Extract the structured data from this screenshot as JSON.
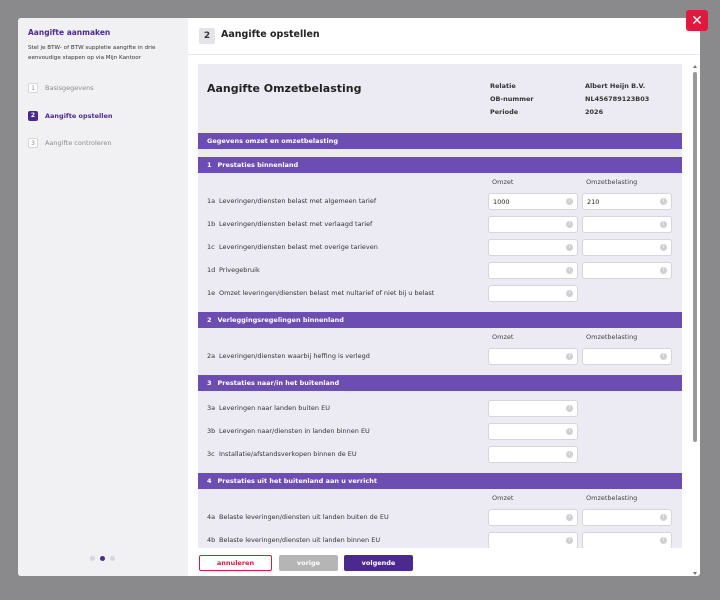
{
  "sidebar": {
    "title": "Aangifte aanmaken",
    "description": "Stel je BTW- of BTW suppletie aangifte in drie eenvoudige stappen op via Mijn Kantoor",
    "steps": [
      {
        "number": "1",
        "label": "Basisgegevens"
      },
      {
        "number": "2",
        "label": "Aangifte opstellen"
      },
      {
        "number": "3",
        "label": "Aangifte controleren"
      }
    ]
  },
  "header": {
    "step_number": "2",
    "title": "Aangifte opstellen"
  },
  "form": {
    "title": "Aangifte Omzetbelasting",
    "meta": [
      {
        "label": "Relatie",
        "value": "Albert Heijn B.V."
      },
      {
        "label": "OB-nummer",
        "value": "NL456789123B03"
      },
      {
        "label": "Periode",
        "value": "2026"
      }
    ],
    "group_title": "Gegevens omzet en omzetbelasting",
    "sections": [
      {
        "number": "1",
        "title": "Prestaties binnenland",
        "columns": [
          "Omzet",
          "Omzetbelasting"
        ],
        "rows": [
          {
            "code": "1a",
            "label": "Leveringen/diensten belast met algemeen tarief",
            "values": [
              1000,
              210
            ]
          },
          {
            "code": "1b",
            "label": "Leveringen/diensten belast met verlaagd tarief",
            "values": [
              null,
              null
            ]
          },
          {
            "code": "1c",
            "label": "Leveringen/diensten belast met overige tarieven",
            "values": [
              null,
              null
            ]
          },
          {
            "code": "1d",
            "label": "Privegebruik",
            "values": [
              null,
              null
            ]
          },
          {
            "code": "1e",
            "label": "Omzet leveringen/diensten belast met nultarief of niet bij u belast",
            "values": [
              null
            ]
          }
        ]
      },
      {
        "number": "2",
        "title": "Verleggingsregelingen binnenland",
        "columns": [
          "Omzet",
          "Omzetbelasting"
        ],
        "rows": [
          {
            "code": "2a",
            "label": "Leveringen/diensten waarbij heffing is verlegd",
            "values": [
              null,
              null
            ]
          }
        ]
      },
      {
        "number": "3",
        "title": "Prestaties naar/in het buitenland",
        "rows": [
          {
            "code": "3a",
            "label": "Leveringen naar landen buiten EU",
            "values": [
              null
            ]
          },
          {
            "code": "3b",
            "label": "Leveringen naar/diensten in landen binnen EU",
            "values": [
              null
            ]
          },
          {
            "code": "3c",
            "label": "Installatie/afstandsverkopen binnen de EU",
            "values": [
              null
            ]
          }
        ]
      },
      {
        "number": "4",
        "title": "Prestaties uit het buitenland aan u verricht",
        "columns": [
          "Omzet",
          "Omzetbelasting"
        ],
        "rows": [
          {
            "code": "4a",
            "label": "Belaste leveringen/diensten uit landen buiten de EU",
            "values": [
              null,
              null
            ]
          },
          {
            "code": "4b",
            "label": "Belaste leveringen/diensten uit landen binnen EU",
            "values": [
              null,
              null
            ]
          }
        ]
      }
    ]
  },
  "buttons": {
    "cancel": "annuleren",
    "previous": "vorige",
    "next": "volgende"
  }
}
